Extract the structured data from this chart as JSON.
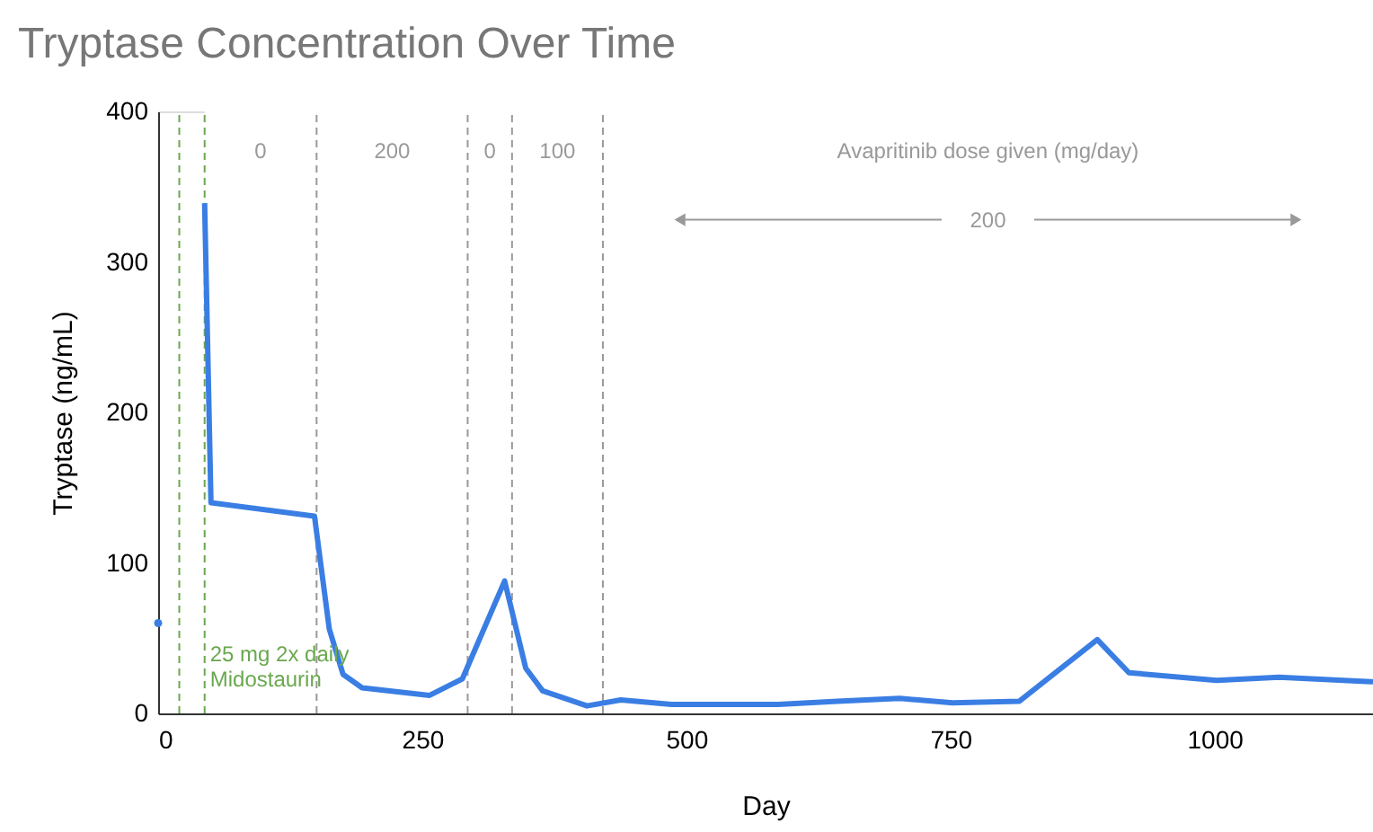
{
  "chart_data": {
    "type": "line",
    "title": "Tryptase Concentration Over Time",
    "xlabel": "Day",
    "ylabel": "Tryptase (ng/mL)",
    "xlim": [
      0,
      1150
    ],
    "ylim": [
      0,
      400
    ],
    "xticks": [
      0,
      250,
      500,
      750,
      1000
    ],
    "yticks": [
      0,
      100,
      200,
      300,
      400
    ],
    "grid": false,
    "series": [
      {
        "type": "scatter",
        "color": "#3a7ee4",
        "x": [
          0
        ],
        "values": [
          60
        ]
      },
      {
        "color": "#3a7ee4",
        "line_style": "solid",
        "x": [
          44,
          50,
          148,
          162,
          175,
          193,
          257,
          288,
          328,
          348,
          364,
          406,
          438,
          486,
          587,
          643,
          702,
          752,
          815,
          889,
          919,
          1002,
          1061,
          1150
        ],
        "values": [
          339,
          140,
          131,
          56,
          26,
          17,
          12,
          23,
          88,
          30,
          15,
          5,
          9,
          6,
          6,
          8,
          10,
          7,
          8,
          49,
          27,
          22,
          24,
          21
        ]
      }
    ],
    "ref_lines": [
      {
        "axis": "x",
        "value": 20,
        "color": "#6aa84f",
        "line_style": "dashed"
      },
      {
        "axis": "x",
        "value": 44,
        "color": "#6aa84f",
        "line_style": "dashed",
        "label": "25 mg 2x daily\nMidostaurin"
      },
      {
        "axis": "x",
        "value": 150,
        "color": "#999999",
        "line_style": "dashed"
      },
      {
        "axis": "x",
        "value": 293,
        "color": "#999999",
        "line_style": "dashed"
      },
      {
        "axis": "x",
        "value": 335,
        "color": "#999999",
        "line_style": "dashed"
      },
      {
        "axis": "x",
        "value": 421,
        "color": "#999999",
        "line_style": "dashed"
      }
    ],
    "bands": [
      {
        "axis": "x",
        "from": 44,
        "to": 150,
        "label": "0",
        "color": "#ffffff"
      },
      {
        "axis": "x",
        "from": 150,
        "to": 293,
        "label": "200",
        "color": "#ffffff"
      },
      {
        "axis": "x",
        "from": 293,
        "to": 335,
        "label": "0",
        "color": "#ffffff"
      },
      {
        "axis": "x",
        "from": 335,
        "to": 421,
        "label": "100",
        "color": "#ffffff"
      },
      {
        "axis": "x",
        "from": 421,
        "to": 1150,
        "label": "200",
        "color": "#ffffff"
      }
    ],
    "annotations": [
      "Avapritinib dose given (mg/day)"
    ]
  }
}
